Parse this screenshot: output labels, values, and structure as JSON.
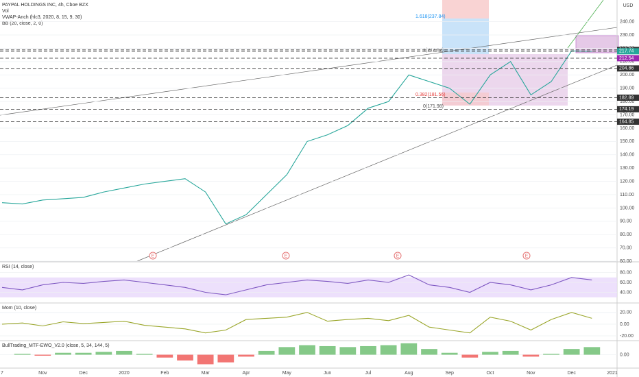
{
  "chart_data": [
    {
      "type": "line",
      "title": "PAYPAL HOLDINGS INC, 4h, Cboe BZX",
      "indicators": [
        "Vol",
        "VWAP-Anch (hlc3, 2020, 8, 15, 9, 30)",
        "BB (20, close, 2, 0)"
      ],
      "currency": "USD",
      "categories": [
        "7",
        null,
        "Nov",
        null,
        "Dec",
        null,
        "2020",
        null,
        "Feb",
        null,
        "Mar",
        null,
        "Apr",
        null,
        "May",
        null,
        "Jun",
        null,
        "Jul",
        null,
        "Aug",
        null,
        "Sep",
        null,
        "Oct",
        null,
        "Nov",
        null,
        "Dec",
        null,
        "2021"
      ],
      "values": [
        104,
        103,
        106,
        107,
        108,
        112,
        115,
        118,
        120,
        122,
        112,
        88,
        95,
        110,
        125,
        150,
        155,
        162,
        175,
        180,
        200,
        195,
        190,
        178,
        200,
        210,
        185,
        195,
        218,
        217.74,
        null
      ],
      "color": "#26a69a",
      "ylim": [
        58,
        247
      ],
      "yticks": [
        {
          "value": 60,
          "label": "60.00"
        },
        {
          "value": 70,
          "label": "70.00"
        },
        {
          "value": 80,
          "label": "80.00"
        },
        {
          "value": 90,
          "label": "90.00"
        },
        {
          "value": 100,
          "label": "100.00"
        },
        {
          "value": 110,
          "label": "110.00"
        },
        {
          "value": 120,
          "label": "120.00"
        },
        {
          "value": 130,
          "label": "130.00"
        },
        {
          "value": 140,
          "label": "140.00"
        },
        {
          "value": 150,
          "label": "150.00"
        },
        {
          "value": 160,
          "label": "160.00"
        },
        {
          "value": 170,
          "label": "170.00"
        },
        {
          "value": 180,
          "label": "180.00"
        },
        {
          "value": 190,
          "label": "190.00"
        },
        {
          "value": 200,
          "label": "200.00"
        },
        {
          "value": 210,
          "label": "210.00"
        },
        {
          "value": 220,
          "label": "220.00"
        },
        {
          "value": 230,
          "label": "230.00"
        },
        {
          "value": 240,
          "label": "240.00"
        }
      ],
      "price_levels": [
        218.76,
        217.74,
        212.54,
        204.86,
        182.89,
        174.19,
        164.85
      ],
      "price_level_colors": [
        "#333",
        "#26a69a",
        "#9c27b0",
        "#333",
        "#333",
        "#333",
        "#333"
      ],
      "annotations": [
        "1.618(237.84)",
        "1(217.67)",
        "0.382(181.56)",
        "0(171.98)"
      ],
      "earnings_marker": "E"
    },
    {
      "type": "line",
      "title": "RSI (14, close)",
      "values": [
        50,
        45,
        55,
        60,
        58,
        62,
        65,
        60,
        55,
        50,
        40,
        35,
        45,
        55,
        60,
        65,
        62,
        58,
        65,
        60,
        75,
        55,
        50,
        40,
        60,
        55,
        45,
        55,
        70,
        65,
        null
      ],
      "color": "#7e57c2",
      "band": [
        30,
        70
      ],
      "band_color": "#e9d8fb",
      "ylim": [
        20,
        100
      ],
      "yticks": [
        {
          "value": 40,
          "label": "40.00"
        },
        {
          "value": 60,
          "label": "60.00"
        },
        {
          "value": 80,
          "label": "80.00"
        }
      ]
    },
    {
      "type": "line",
      "title": "Mom (10, close)",
      "values": [
        0,
        2,
        -3,
        4,
        1,
        3,
        5,
        -2,
        -5,
        -8,
        -15,
        -10,
        8,
        10,
        12,
        20,
        5,
        8,
        10,
        6,
        15,
        -5,
        -10,
        -15,
        12,
        5,
        -10,
        8,
        20,
        10,
        null
      ],
      "color": "#9aa62a",
      "ylim": [
        -27,
        35
      ],
      "yticks": [
        {
          "value": -20,
          "label": "-20.00"
        },
        {
          "value": 0,
          "label": "0.00"
        },
        {
          "value": 20,
          "label": "20.00"
        }
      ]
    },
    {
      "type": "bar",
      "title": "BullTrading_MTF-EWO_V2.0 (close, 5, 34, 144, 5)",
      "values": [
        0,
        1,
        -1,
        2,
        2,
        3,
        4,
        1,
        -3,
        -6,
        -10,
        -8,
        -2,
        4,
        8,
        10,
        9,
        8,
        9,
        10,
        12,
        6,
        2,
        -3,
        3,
        4,
        -2,
        1,
        6,
        8,
        null
      ],
      "positive_color": "#66bb6a",
      "negative_color": "#ef5350",
      "ylim": [
        -14,
        14
      ],
      "yticks": [
        {
          "value": 0,
          "label": "0.00"
        }
      ]
    }
  ]
}
